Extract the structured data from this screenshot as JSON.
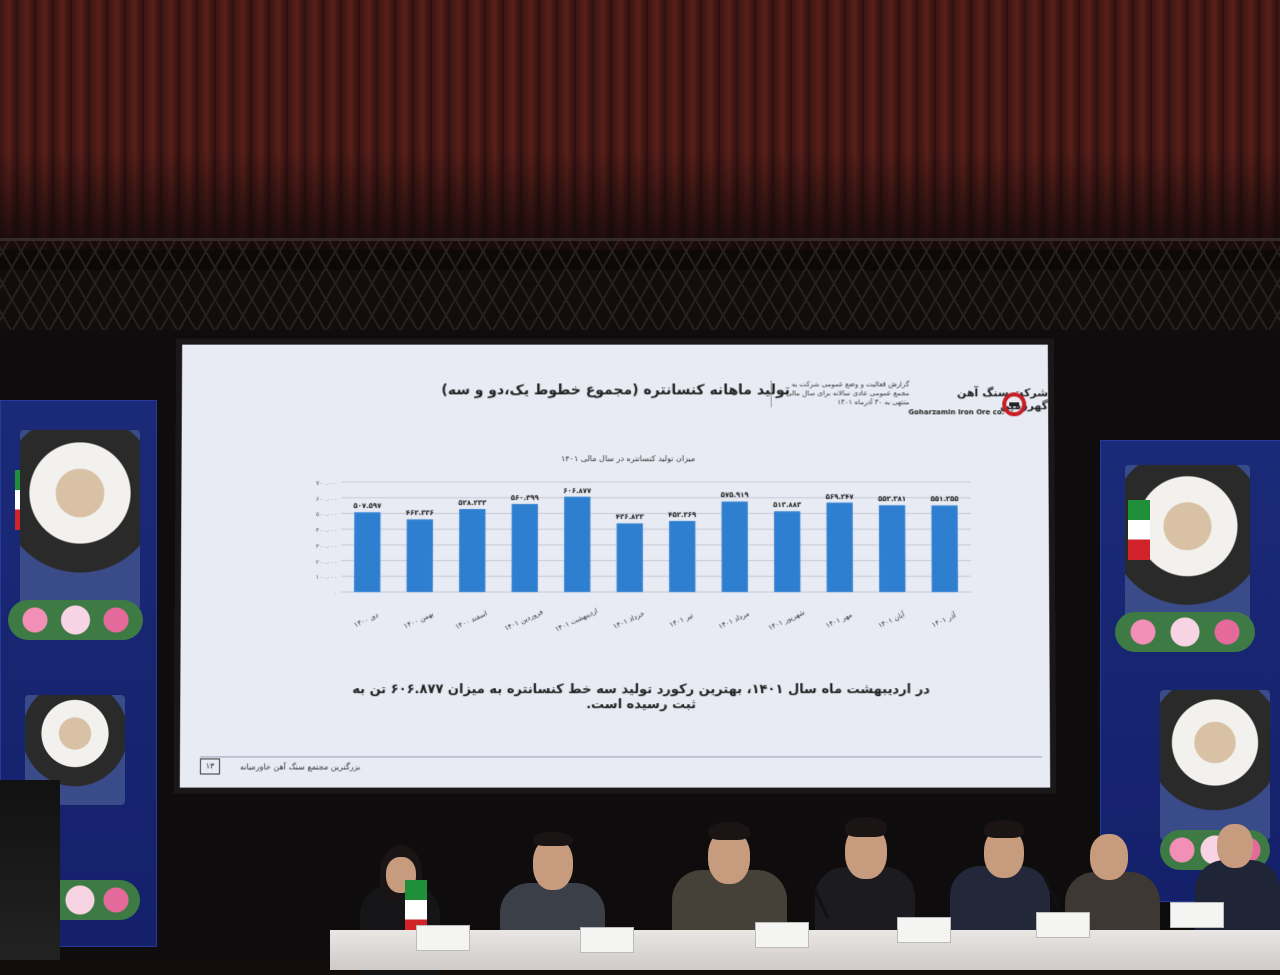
{
  "slide": {
    "title": "تولید ماهانه کنسانتره (مجموع خطوط یک،دو و سه)",
    "report_note": "گزارش فعالیت و وضع عمومی شرکت به مجمع عمومی عادی سالانه برای سال مالی منتهی به ۳۰ آذرماه ۱۴۰۱",
    "company_name_fa": "شرکت سنگ آهن گهرزمین",
    "company_name_en": "Goharzamin Iron Ore co.",
    "chart_subtitle": "میزان تولید کنسانتره در سال مالی ۱۴۰۱",
    "conclusion": "در اردیبهشت ماه سال ۱۴۰۱، بهترین رکورد تولید سه خط کنسانتره به میزان ۶۰۶.۸۷۷ تن به ثبت رسیده است.",
    "footer": "بزرگترین مجتمع سنگ آهن خاورمیانه",
    "page_number": "۱۳"
  },
  "chart_data": {
    "type": "bar",
    "title": "میزان تولید کنسانتره در سال مالی ۱۴۰۱",
    "categories": [
      "دی ۱۴۰۰",
      "بهمن ۱۴۰۰",
      "اسفند ۱۴۰۰",
      "فروردین ۱۴۰۱",
      "اردیبهشت ۱۴۰۱",
      "خرداد ۱۴۰۱",
      "تیر ۱۴۰۱",
      "مرداد ۱۴۰۱",
      "شهریور ۱۴۰۱",
      "مهر ۱۴۰۱",
      "آبان ۱۴۰۱",
      "آذر ۱۴۰۱"
    ],
    "values": [
      507.597,
      462.336,
      528.233,
      560.399,
      606.877,
      436.823,
      452.369,
      575.919,
      513.883,
      569.247,
      552.381,
      551.255
    ],
    "data_labels": [
      "۵۰۷.۵۹۷",
      "۴۶۲.۳۳۶",
      "۵۲۸.۲۳۳",
      "۵۶۰.۳۹۹",
      "۶۰۶.۸۷۷",
      "۴۳۶.۸۲۳",
      "۴۵۲.۳۶۹",
      "۵۷۵.۹۱۹",
      "۵۱۳.۸۸۳",
      "۵۶۹.۲۴۷",
      "۵۵۲.۳۸۱",
      "۵۵۱.۲۵۵"
    ],
    "y_ticks": [
      0,
      100,
      200,
      300,
      400,
      500,
      600,
      700
    ],
    "y_tick_labels": [
      "۰",
      "۱۰۰.۰۰۰",
      "۲۰۰.۰۰۰",
      "۳۰۰.۰۰۰",
      "۴۰۰.۰۰۰",
      "۵۰۰.۰۰۰",
      "۶۰۰.۰۰۰",
      "۷۰۰.۰۰۰"
    ],
    "ylim": [
      0,
      700
    ],
    "bar_color": "#2f7fd0",
    "grid": true
  },
  "nameplates": [
    "",
    "",
    "",
    "",
    "",
    "",
    ""
  ]
}
